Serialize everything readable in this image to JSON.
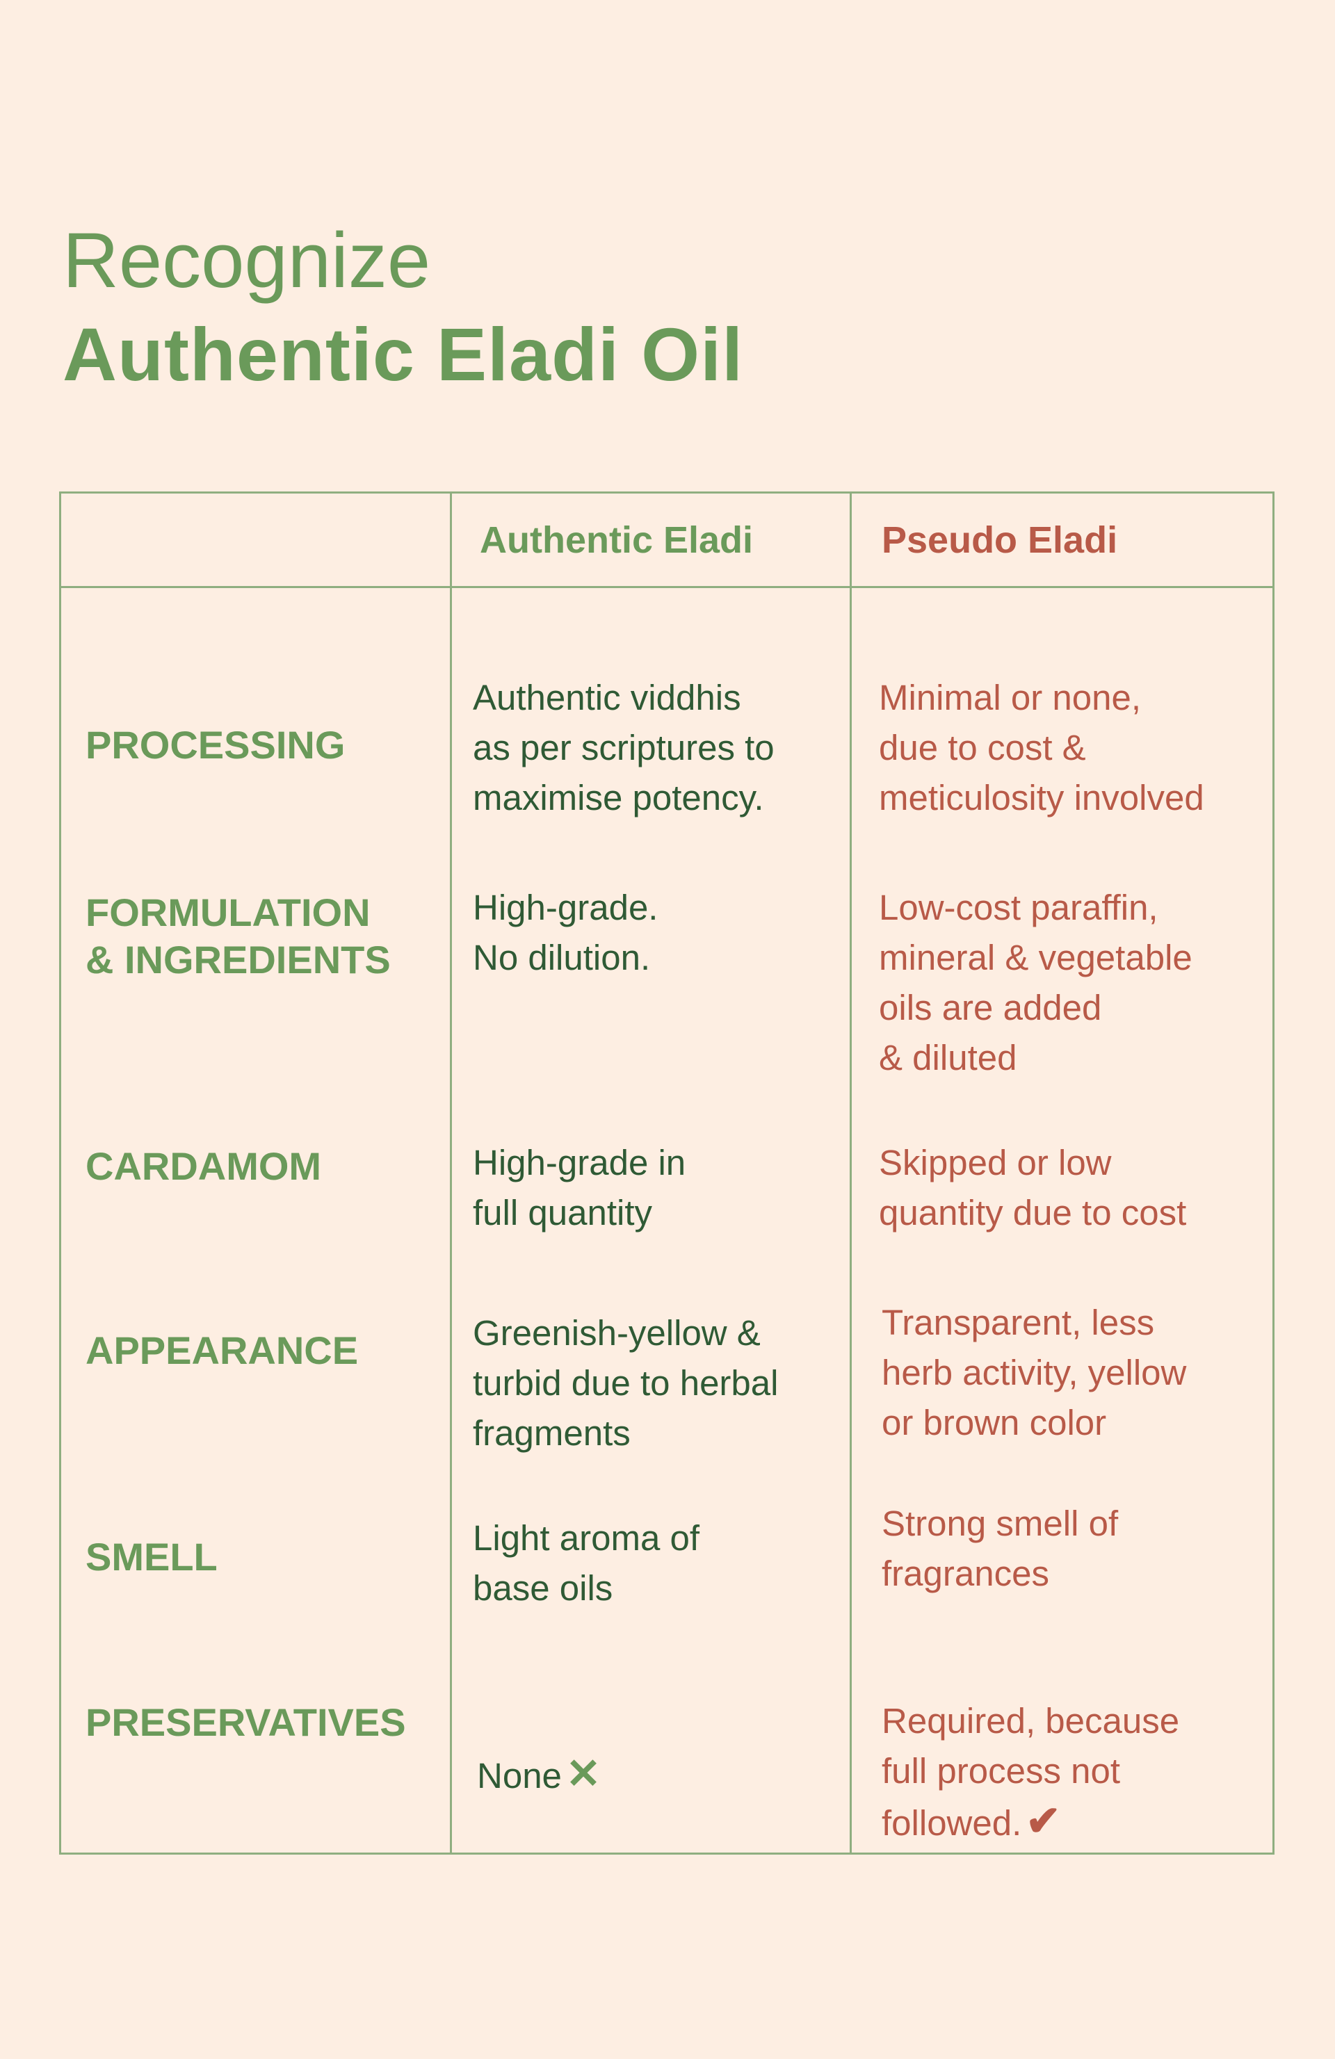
{
  "title": {
    "line1": "Recognize",
    "line2": "Authentic Eladi Oil"
  },
  "table": {
    "headers": {
      "authentic": "Authentic Eladi",
      "pseudo": "Pseudo Eladi"
    },
    "rows": [
      {
        "label": "PROCESSING",
        "authentic": "Authentic viddhis\nas per scriptures to\nmaximise potency.",
        "pseudo": "Minimal or none,\ndue to cost &\nmeticulosity involved"
      },
      {
        "label": "FORMULATION\n& INGREDIENTS",
        "authentic": "High-grade.\nNo dilution.",
        "pseudo": "Low-cost paraffin,\nmineral & vegetable\noils are added\n& diluted"
      },
      {
        "label": "CARDAMOM",
        "authentic": "High-grade in\nfull quantity",
        "pseudo": "Skipped or low\nquantity due to cost"
      },
      {
        "label": "APPEARANCE",
        "authentic": "Greenish-yellow &\nturbid due to herbal\nfragments",
        "pseudo": "Transparent, less\nherb activity, yellow\nor brown color"
      },
      {
        "label": "SMELL",
        "authentic": "Light aroma of\nbase oils",
        "pseudo": "Strong smell of\nfragrances"
      },
      {
        "label": "PRESERVATIVES",
        "authentic": "None",
        "pseudo": "Required, because\nfull process not\nfollowed."
      }
    ],
    "icons": {
      "authentic_preservatives": "cross-icon",
      "pseudo_preservatives": "checkmark-icon"
    }
  },
  "colors": {
    "background": "#fdeee2",
    "heading_green": "#6a9a5a",
    "body_green": "#2f5a35",
    "pseudo_red": "#b85a48",
    "border": "#8fae80"
  }
}
